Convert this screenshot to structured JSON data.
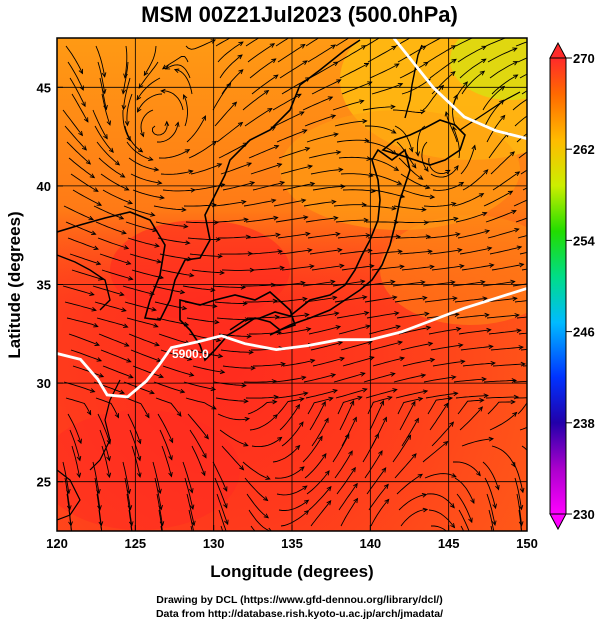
{
  "figure": {
    "title": "MSM 00Z21Jul2023 (500.0hPa)",
    "credit_line1": "Drawing by DCL (https://www.gfd-dennou.org/library/dcl/)",
    "credit_line2": "Data from http://database.rish.kyoto-u.ac.jp/arch/jmadata/"
  },
  "map_data": {
    "type": "weather-map",
    "xlabel": "Longitude (degrees)",
    "ylabel": "Latitude  (degrees)",
    "x_range": [
      120,
      150
    ],
    "y_range": [
      22.5,
      47.5
    ],
    "x_ticks": [
      120,
      125,
      130,
      135,
      140,
      145,
      150
    ],
    "y_ticks": [
      25,
      30,
      35,
      40,
      45
    ],
    "colorbar": {
      "range": [
        230,
        270
      ],
      "labels": [
        270,
        262,
        254,
        246,
        238,
        230
      ],
      "colors": [
        "#ff00ff",
        "#3300cc",
        "#0044ff",
        "#00ccff",
        "#00ee66",
        "#99ee00",
        "#ffee00",
        "#ff9900",
        "#ff4400",
        "#ff2222"
      ]
    },
    "contour": {
      "label": "5900.0",
      "color": "#ffffff",
      "path_lonlat": [
        [
          120,
          31.5
        ],
        [
          121.5,
          31.2
        ],
        [
          122.6,
          30.2
        ],
        [
          123.2,
          29.4
        ],
        [
          124.5,
          29.3
        ],
        [
          125.7,
          30.1
        ],
        [
          126.5,
          30.9
        ],
        [
          127.3,
          31.8
        ],
        [
          129,
          32.1
        ],
        [
          130.5,
          32.4
        ],
        [
          132,
          32.0
        ],
        [
          134,
          31.7
        ],
        [
          136,
          31.9
        ],
        [
          138,
          32.2
        ],
        [
          140,
          32.2
        ],
        [
          142,
          32.6
        ],
        [
          144,
          33.2
        ],
        [
          146,
          33.8
        ],
        [
          148,
          34.3
        ],
        [
          150,
          34.8
        ]
      ],
      "path2_lonlat": [
        [
          141.5,
          47.5
        ],
        [
          142.5,
          46.5
        ],
        [
          144,
          45
        ],
        [
          146,
          43.5
        ],
        [
          148,
          42.8
        ],
        [
          150,
          42.4
        ]
      ]
    },
    "vortex_centers_lonlat": [
      [
        126.3,
        42.8
      ],
      [
        144.5,
        41.0
      ]
    ]
  }
}
